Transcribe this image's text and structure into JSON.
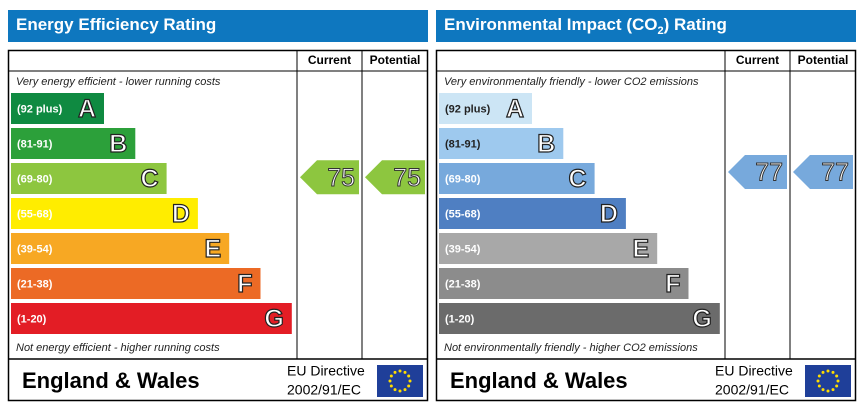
{
  "panels": [
    {
      "title_parts": [
        "Energy Efficiency Rating"
      ],
      "current_header": "Current",
      "potential_header": "Potential",
      "top_note": "Very energy efficient - lower running costs",
      "bottom_note": "Not energy efficient - higher running costs",
      "bands": [
        {
          "range": "(92 plus)",
          "letter": "A",
          "color": "#0f8a41"
        },
        {
          "range": "(81-91)",
          "letter": "B",
          "color": "#2ca03a"
        },
        {
          "range": "(69-80)",
          "letter": "C",
          "color": "#8dc63f"
        },
        {
          "range": "(55-68)",
          "letter": "D",
          "color": "#ffed00"
        },
        {
          "range": "(39-54)",
          "letter": "E",
          "color": "#f7a823"
        },
        {
          "range": "(21-38)",
          "letter": "F",
          "color": "#ec6a25"
        },
        {
          "range": "(1-20)",
          "letter": "G",
          "color": "#e31d25"
        }
      ],
      "current": 75,
      "potential": 75,
      "region": "England & Wales",
      "directive": "EU Directive",
      "directive_code": "2002/91/EC"
    },
    {
      "title_parts": [
        "Environmental Impact (CO",
        "2",
        ") Rating"
      ],
      "current_header": "Current",
      "potential_header": "Potential",
      "top_note": "Very environmentally friendly - lower CO2 emissions",
      "bottom_note": "Not environmentally friendly - higher CO2 emissions",
      "bands": [
        {
          "range": "(92 plus)",
          "letter": "A",
          "color": "#cce5f5"
        },
        {
          "range": "(81-91)",
          "letter": "B",
          "color": "#9ec9ee"
        },
        {
          "range": "(69-80)",
          "letter": "C",
          "color": "#77a9dc"
        },
        {
          "range": "(55-68)",
          "letter": "D",
          "color": "#4f7fc2"
        },
        {
          "range": "(39-54)",
          "letter": "E",
          "color": "#a8a8a8"
        },
        {
          "range": "(21-38)",
          "letter": "F",
          "color": "#8c8c8c"
        },
        {
          "range": "(1-20)",
          "letter": "G",
          "color": "#6b6b6b"
        }
      ],
      "current": 77,
      "potential": 77,
      "region": "England & Wales",
      "directive": "EU Directive",
      "directive_code": "2002/91/EC"
    }
  ]
}
